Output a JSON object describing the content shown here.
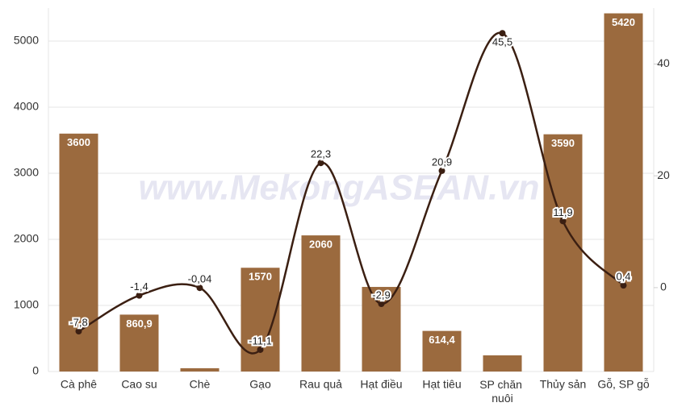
{
  "chart_data": {
    "type": "bar-line",
    "watermark": "www.MekongASEAN.vn",
    "categories": [
      "Cà phê",
      "Cao su",
      "Chè",
      "Gạo",
      "Rau quả",
      "Hạt điều",
      "Hạt tiêu",
      "SP chăn nuôi",
      "Thủy sản",
      "Gỗ, SP gỗ"
    ],
    "series": [
      {
        "type": "bar",
        "color": "#9b6a3e",
        "values": [
          3600,
          860.9,
          50,
          1570,
          2060,
          1280,
          614.4,
          245,
          3590,
          5420
        ],
        "value_labels": [
          "3600",
          "860,9",
          null,
          "1570",
          "2060",
          null,
          "614,4",
          null,
          "3590",
          "5420"
        ]
      },
      {
        "type": "line",
        "axis": "y2",
        "color": "#3b1f12",
        "values": [
          -7.8,
          -1.4,
          -0.04,
          -11.1,
          22.3,
          -2.9,
          20.9,
          45.5,
          11.9,
          0.4
        ],
        "value_labels": [
          "-7,8",
          "-1,4",
          "-0,04",
          "-11,1",
          "22,3",
          "-2,9",
          "20,9",
          "45,5",
          "11,9",
          "0,4"
        ]
      }
    ],
    "ylim": [
      0,
      5500
    ],
    "yticks": [
      0,
      1000,
      2000,
      3000,
      4000,
      5000
    ],
    "y2lim": [
      -15,
      50
    ],
    "y2ticks": [
      0,
      20,
      40
    ],
    "grid": true
  }
}
